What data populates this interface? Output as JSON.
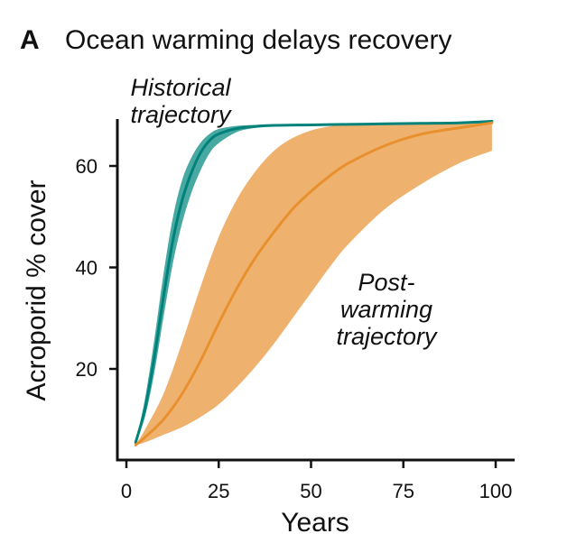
{
  "panel_letter": "A",
  "chart_data": {
    "type": "area",
    "title": "Ocean warming delays recovery",
    "xlabel": "Years",
    "ylabel": "Acroporid % cover",
    "xlim": [
      0,
      104
    ],
    "ylim": [
      3.5,
      71.5
    ],
    "x_ticks": [
      0,
      25,
      50,
      75,
      100
    ],
    "x_tick_labels": [
      "0",
      "25",
      "50",
      "75",
      "100"
    ],
    "y_ticks": [
      20,
      40,
      60
    ],
    "y_tick_labels": [
      "20",
      "40",
      "60"
    ],
    "grid": false,
    "legend": "none",
    "series": [
      {
        "label": [
          "Historical",
          "trajectory"
        ],
        "color": "#00827a",
        "band_color": "#48a8a2",
        "x": [
          2.5,
          5,
          7.5,
          10,
          12.5,
          15,
          17.5,
          20,
          22.5,
          25,
          30,
          35,
          40,
          50,
          60,
          70,
          80,
          90,
          99
        ],
        "mean": [
          5.5,
          12,
          22,
          34,
          45,
          53,
          58.5,
          62.5,
          65,
          66.3,
          67.4,
          67.8,
          68,
          68.1,
          68.2,
          68.3,
          68.4,
          68.5,
          68.8
        ],
        "upper": [
          5.5,
          14,
          25.5,
          38.5,
          49.5,
          57,
          61.5,
          64.5,
          66.3,
          67.3,
          67.9,
          68.1,
          68.2,
          68.3,
          68.3,
          68.4,
          68.5,
          68.6,
          68.9
        ],
        "lower": [
          5.5,
          10.5,
          19,
          30,
          40.5,
          48.5,
          54.5,
          59,
          62.5,
          64.5,
          66.7,
          67.5,
          67.8,
          68,
          68.1,
          68.2,
          68.3,
          68.4,
          68.7
        ]
      },
      {
        "label": [
          "Post-",
          "warming",
          "trajectory"
        ],
        "color": "#e8902e",
        "band_color": "#efb26e",
        "x": [
          2.5,
          5,
          10,
          15,
          20,
          25,
          30,
          35,
          40,
          45,
          50,
          55,
          60,
          70,
          80,
          90,
          99
        ],
        "mean": [
          5,
          6.5,
          10,
          15,
          21.5,
          29,
          36,
          42,
          47,
          51.5,
          55,
          58,
          60.5,
          64,
          66.3,
          67.5,
          68.5
        ],
        "upper": [
          5,
          8,
          15,
          25,
          36,
          46,
          53.5,
          59,
          63,
          65.5,
          67,
          67.8,
          68.2,
          68.5,
          68.6,
          68.7,
          68.8
        ],
        "lower": [
          5,
          5.5,
          7,
          8.5,
          10.5,
          13,
          16.5,
          20.5,
          25,
          30,
          35,
          40,
          44.5,
          51.5,
          56.5,
          60.5,
          63
        ]
      }
    ]
  }
}
